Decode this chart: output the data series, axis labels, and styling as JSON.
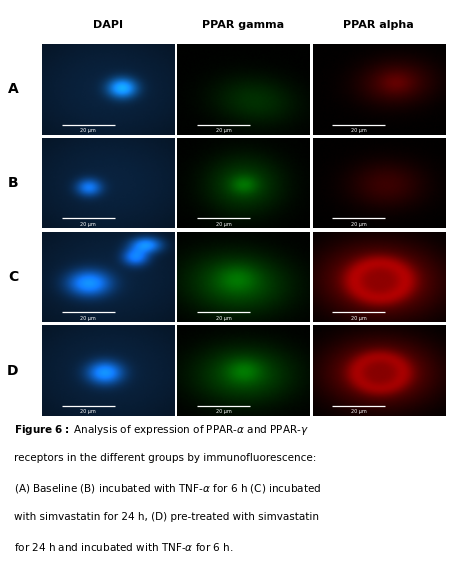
{
  "col_headers": [
    "DAPI",
    "PPAR gamma",
    "PPAR alpha"
  ],
  "row_labels": [
    "A",
    "B",
    "C",
    "D"
  ],
  "col_header_fontsize": 8,
  "row_label_fontsize": 10,
  "caption_fontsize": 7.5,
  "background_color": "#ffffff",
  "panel_border_color": "#888888",
  "scalebar_color": "#ffffff",
  "scalebar_fontsize": 3.5,
  "rows": 4,
  "cols": 3,
  "img_size": 120,
  "figsize": [
    4.51,
    5.68
  ],
  "dpi": 100,
  "caption_lines": [
    "\\textbf{Figure 6:} Analysis of expression of PPAR-α and PPAR-γ",
    "receptors in the different groups by immunofluorescence:",
    "(A) Baseline (B) incubated with TNF-α for 6 h (C) incubated",
    "with simvastatin for 24 h, (D) pre-treated with simvastatin",
    "for 24 h and incubated with TNF-α for 6 h."
  ]
}
